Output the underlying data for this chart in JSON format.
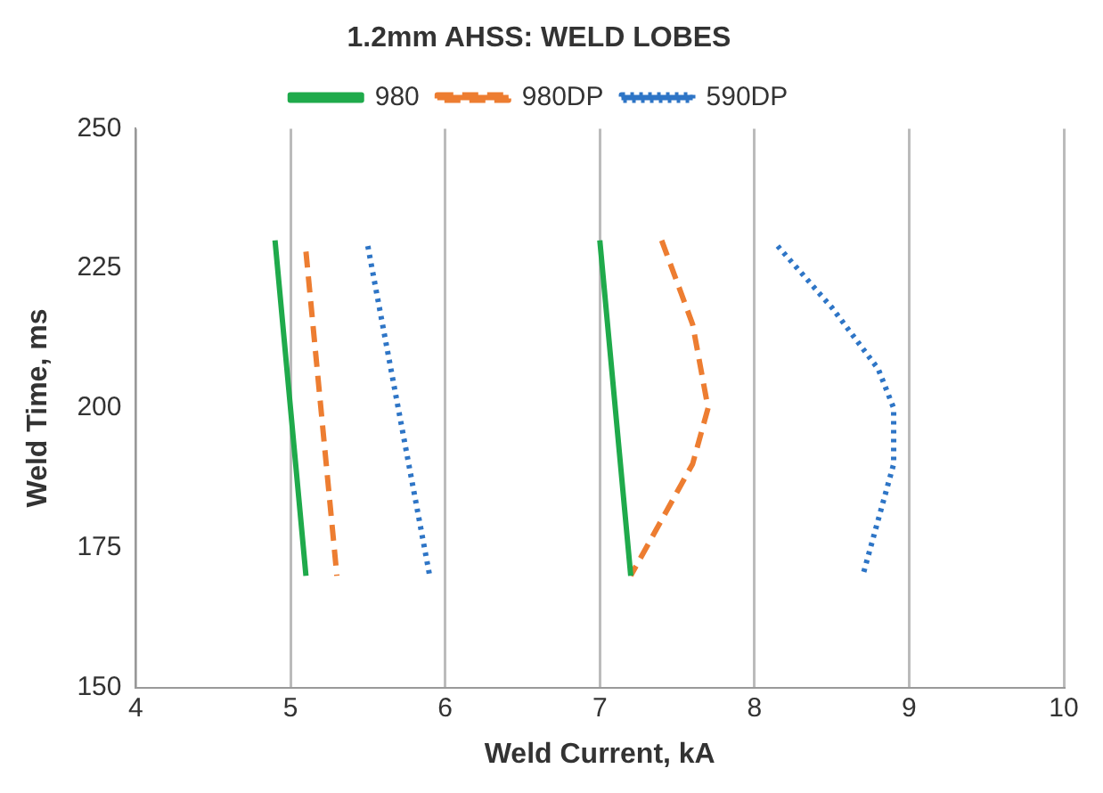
{
  "chart_data": {
    "type": "line",
    "title": "1.2mm AHSS: WELD LOBES",
    "xlabel": "Weld Current, kA",
    "ylabel": "Weld Time, ms",
    "series": [
      {
        "name": "980",
        "color": "#1faa4b",
        "line_style": "solid",
        "x": [
          4.9,
          5.1,
          6.0,
          7.0,
          7.2
        ],
        "values": [
          230,
          170,
          null,
          230,
          170
        ]
      },
      {
        "name": "980DP",
        "color": "#ed7d31",
        "line_style": "dashed",
        "x": [
          5.1,
          5.3,
          6.3,
          7.4,
          7.6,
          7.7,
          7.6,
          7.4,
          7.2
        ],
        "values": [
          228,
          170,
          null,
          230,
          215,
          200,
          190,
          180,
          170
        ]
      },
      {
        "name": "590DP",
        "color": "#2e75c6",
        "line_style": "dotted",
        "x": [
          5.5,
          5.9,
          7.0,
          8.15,
          8.5,
          8.8,
          8.9,
          8.9,
          8.8,
          8.7
        ],
        "values": [
          229,
          170,
          null,
          229,
          218,
          207,
          200,
          190,
          180,
          170
        ]
      }
    ],
    "xlim": [
      4,
      10
    ],
    "xticks": [
      4,
      5,
      6,
      7,
      8,
      9,
      10
    ],
    "ylim": [
      150,
      250
    ],
    "yticks": [
      150,
      175,
      200,
      225,
      250
    ],
    "grid": "x",
    "legend": "top",
    "marker": "none"
  }
}
